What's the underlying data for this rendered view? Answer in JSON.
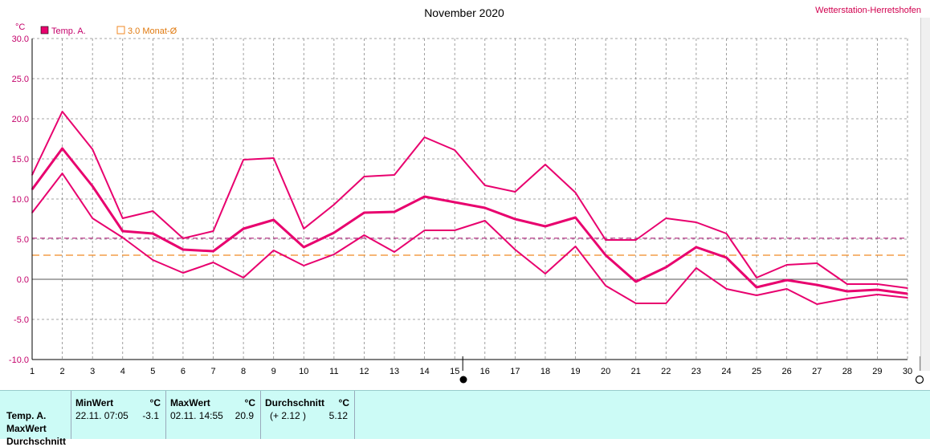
{
  "header": {
    "title": "November 2020",
    "station": "Wetterstation-Herretshofen",
    "unit": "°C"
  },
  "legend": [
    {
      "label": "Temp. A.",
      "color": "#e8006e",
      "style": "filled"
    },
    {
      "label": "3.0 Monat-Ø",
      "color": "#f08a24",
      "style": "outline"
    }
  ],
  "chart_data": {
    "type": "line",
    "x": [
      1,
      2,
      3,
      4,
      5,
      6,
      7,
      8,
      9,
      10,
      11,
      12,
      13,
      14,
      15,
      16,
      17,
      18,
      19,
      20,
      21,
      22,
      23,
      24,
      25,
      26,
      27,
      28,
      29,
      30
    ],
    "xlim": [
      1,
      30
    ],
    "ylim": [
      -10,
      30
    ],
    "yticks": [
      "30.0",
      "25.0",
      "20.0",
      "15.0",
      "10.0",
      "5.0",
      "0.0",
      "-5.0",
      "-10.0"
    ],
    "xticks": [
      "1",
      "2",
      "3",
      "4",
      "5",
      "6",
      "7",
      "8",
      "9",
      "10",
      "11",
      "12",
      "13",
      "14",
      "15",
      "16",
      "17",
      "18",
      "19",
      "20",
      "21",
      "22",
      "23",
      "24",
      "25",
      "26",
      "27",
      "28",
      "29",
      "30"
    ],
    "grid": true,
    "series": [
      {
        "role": "max",
        "color": "#e8006e",
        "values": [
          13.0,
          20.9,
          16.2,
          7.6,
          8.5,
          5.1,
          6.0,
          14.9,
          15.1,
          6.3,
          9.3,
          12.8,
          13.0,
          17.7,
          16.1,
          11.7,
          10.9,
          14.3,
          10.8,
          4.9,
          4.9,
          7.6,
          7.1,
          5.7,
          0.2,
          1.8,
          2.0,
          -0.6,
          -0.6,
          -1.1
        ]
      },
      {
        "role": "avg",
        "color": "#e8006e",
        "values": [
          11.2,
          16.3,
          11.6,
          6.0,
          5.7,
          3.7,
          3.5,
          6.3,
          7.4,
          4.0,
          5.8,
          8.3,
          8.4,
          10.3,
          9.6,
          8.9,
          7.5,
          6.6,
          7.7,
          3.0,
          -0.3,
          1.5,
          4.0,
          2.7,
          -1.0,
          -0.1,
          -0.7,
          -1.5,
          -1.3,
          -1.8
        ]
      },
      {
        "role": "min",
        "color": "#e8006e",
        "values": [
          8.3,
          13.2,
          7.6,
          5.2,
          2.4,
          0.8,
          2.1,
          0.2,
          3.6,
          1.7,
          3.1,
          5.5,
          3.4,
          6.1,
          6.1,
          7.3,
          3.7,
          0.7,
          4.1,
          -0.8,
          -3.0,
          -3.0,
          1.4,
          -1.2,
          -2.0,
          -1.2,
          -3.1,
          -2.4,
          -1.9,
          -2.3
        ]
      }
    ],
    "reference_lines": [
      {
        "name": "Temp. A. monthly average",
        "value": 5.12,
        "color": "#b0207a",
        "dash": "dash"
      },
      {
        "name": "3.0 Monat-Ø",
        "value": 3.0,
        "color": "#f08a24",
        "dash": "long-dash"
      }
    ]
  },
  "stats": {
    "row_labels": [
      "Temp. A.",
      "MaxWert",
      "Durchschnitt"
    ],
    "min": {
      "header": "MinWert",
      "unit": "°C",
      "datetime": "22.11.  07:05",
      "value": "-3.1"
    },
    "max": {
      "header": "MaxWert",
      "unit": "°C",
      "datetime": "02.11.  14:55",
      "value": "20.9"
    },
    "avg": {
      "header": "Durchschnitt",
      "unit": "°C",
      "delta": "(+ 2.12 )",
      "value": "5.12"
    }
  }
}
